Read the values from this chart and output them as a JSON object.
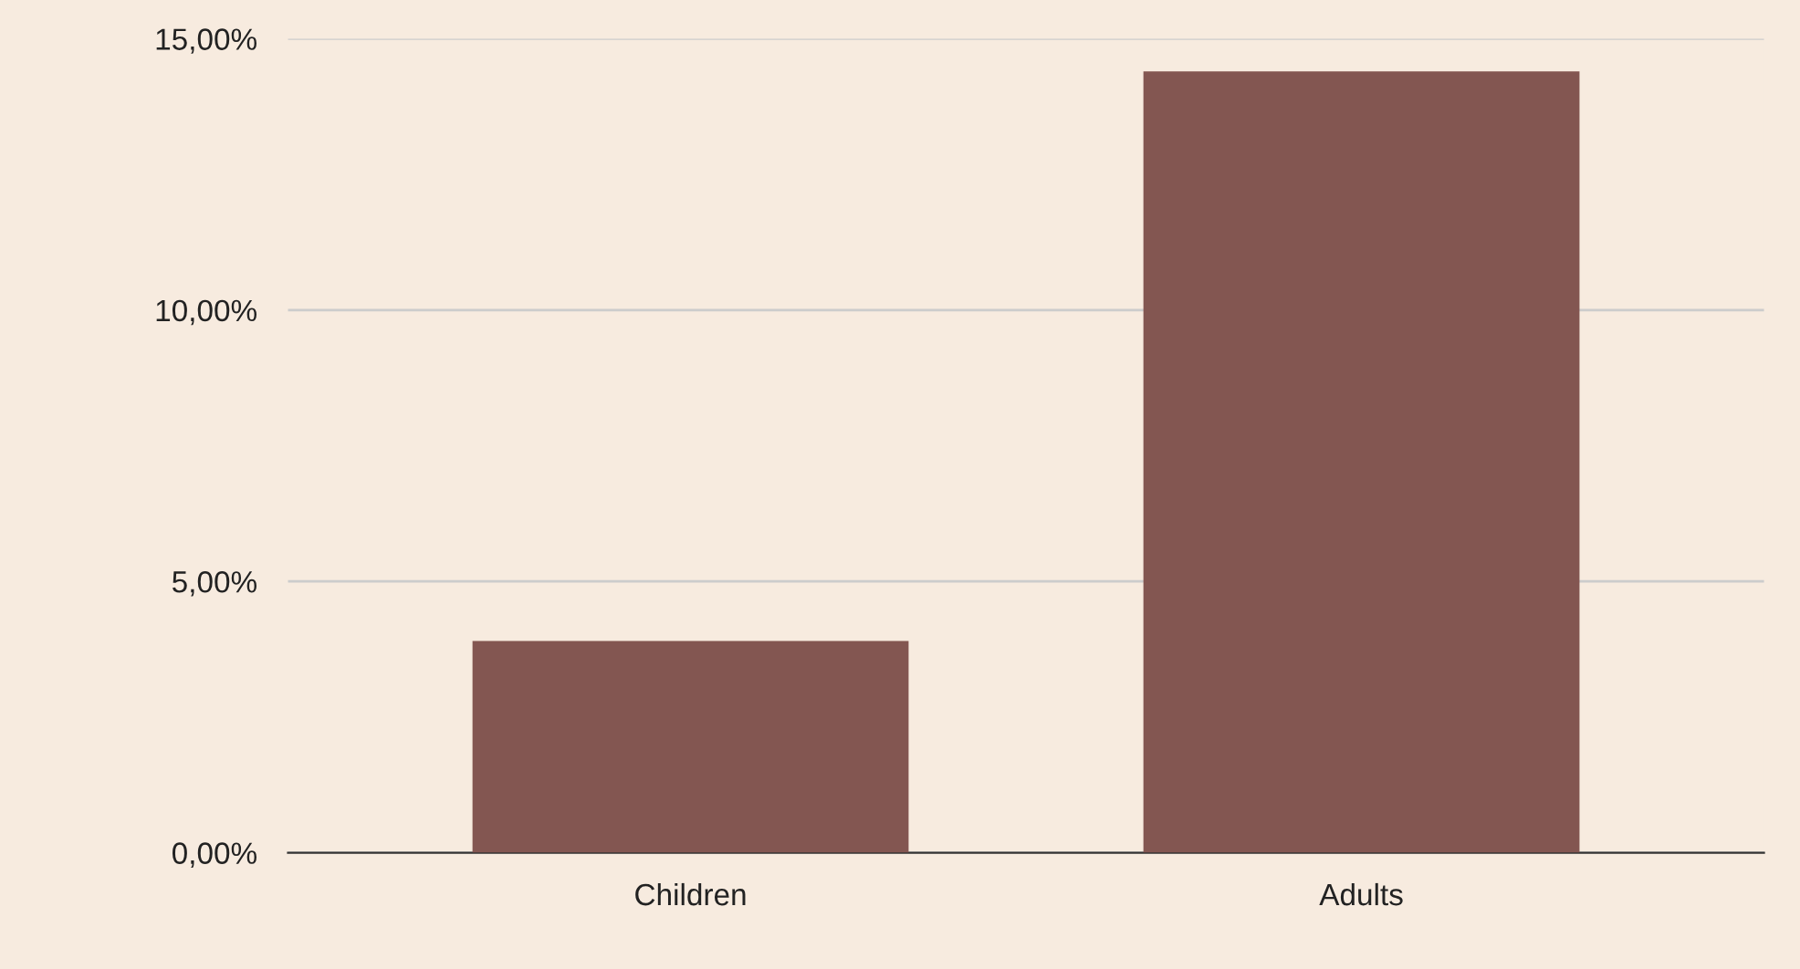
{
  "chart_data": {
    "type": "bar",
    "categories": [
      "Children",
      "Adults"
    ],
    "values": [
      3.9,
      14.4
    ],
    "color": "#835651",
    "ylim": [
      0,
      15
    ],
    "yticks": [
      {
        "value": 0,
        "label": "0,00%"
      },
      {
        "value": 5,
        "label": "5,00%"
      },
      {
        "value": 10,
        "label": "10,00%"
      },
      {
        "value": 15,
        "label": "15,00%"
      }
    ],
    "grid": "y",
    "legend": false
  }
}
